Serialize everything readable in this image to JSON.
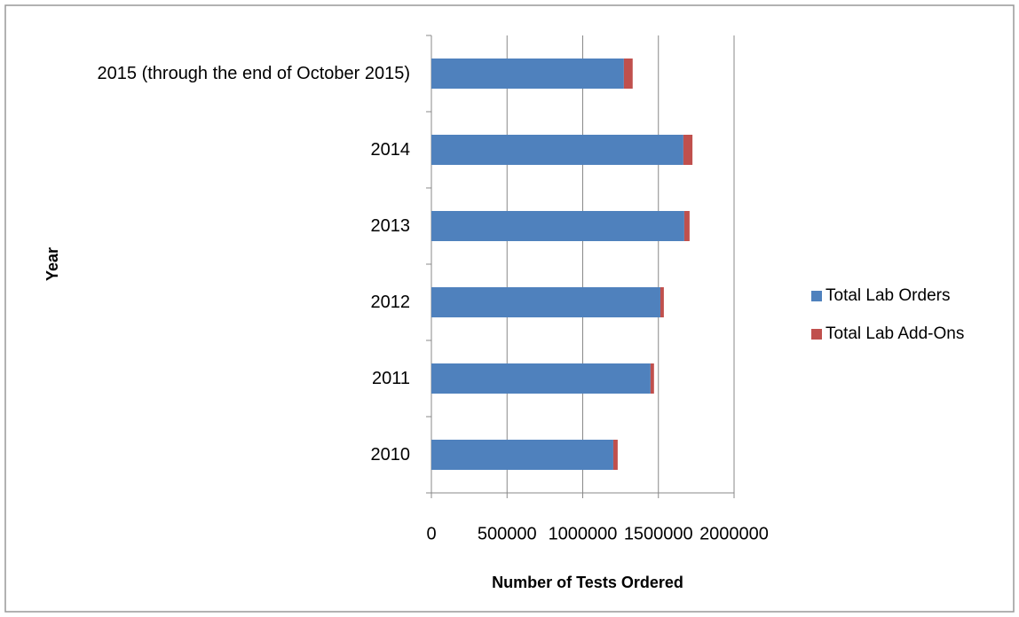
{
  "chart_data": {
    "type": "bar",
    "orientation": "horizontal",
    "stacked": true,
    "categories": [
      "2010",
      "2011",
      "2012",
      "2013",
      "2014",
      "2015 (through the end of October 2015)"
    ],
    "series": [
      {
        "name": "Total Lab Orders",
        "color": "#4f81bd",
        "values": [
          1202000,
          1448000,
          1513000,
          1671000,
          1665000,
          1272000
        ]
      },
      {
        "name": "Total Lab Add-Ons",
        "color": "#c0504d",
        "values": [
          29000,
          23000,
          23000,
          35000,
          60000,
          58000
        ]
      }
    ],
    "xlim": [
      0,
      2000000
    ],
    "xticks": [
      0,
      500000,
      1000000,
      1500000,
      2000000
    ],
    "grid": true,
    "xlabel": "Number of Tests Ordered",
    "ylabel": "Year",
    "legend": "right"
  }
}
